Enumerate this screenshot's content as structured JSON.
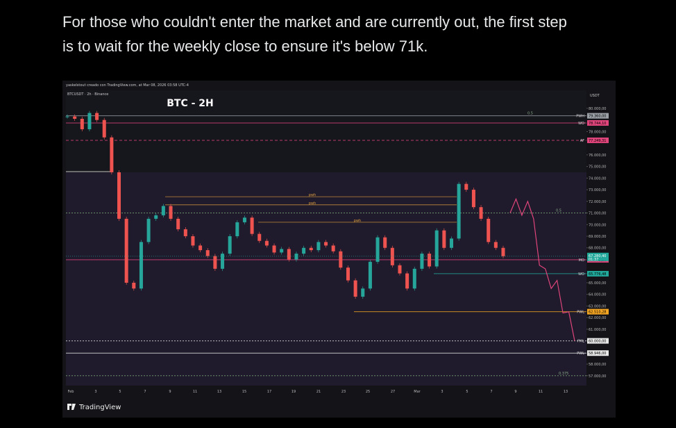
{
  "post": {
    "lines": [
      "For those who couldn't enter the market and are currently out, the first step",
      "is to wait for the weekly close to ensure it's below 71k."
    ]
  },
  "chart": {
    "type": "candlestick",
    "attribution": "yaskelstout creado con TradingView.com, at Mar 08, 2026 03:58 UTC-4",
    "symbol": "BTCUSDT · 2h · Binance",
    "title": "BTC - 2H",
    "currency": "USDT",
    "brand": "TradingView",
    "ylim": [
      56150,
      81550
    ],
    "yticks": [
      {
        "value": 80000,
        "label": "80.000,00"
      },
      {
        "value": 78000,
        "label": "78.000,00"
      },
      {
        "value": 76000,
        "label": "76.000,00"
      },
      {
        "value": 75000,
        "label": "75.000,00"
      },
      {
        "value": 74000,
        "label": "74.000,00"
      },
      {
        "value": 73000,
        "label": "73.000,00"
      },
      {
        "value": 72000,
        "label": "72.000,00"
      },
      {
        "value": 71000,
        "label": "71.000,00"
      },
      {
        "value": 70000,
        "label": "70.000,00"
      },
      {
        "value": 69000,
        "label": "69.000,00"
      },
      {
        "value": 68000,
        "label": "68.000,00"
      },
      {
        "value": 65000,
        "label": "65.000,00"
      },
      {
        "value": 64000,
        "label": "64.000,00"
      },
      {
        "value": 63000,
        "label": "63.000,00"
      },
      {
        "value": 62000,
        "label": "62.000,00"
      },
      {
        "value": 61000,
        "label": "61.000,00"
      },
      {
        "value": 58000,
        "label": "58.000,00"
      },
      {
        "value": 57000,
        "label": "57.000,00"
      }
    ],
    "xticks": [
      "Feb",
      "3",
      "5",
      "7",
      "9",
      "11",
      "13",
      "15",
      "17",
      "19",
      "21",
      "23",
      "25",
      "27",
      "Mar",
      "3",
      "5",
      "7",
      "9",
      "11",
      "13"
    ],
    "levels": [
      {
        "name": "PWH",
        "value": 79360,
        "label": "79.360,00",
        "color": "#9aa0a6"
      },
      {
        "name": "WO",
        "value": 78744.1,
        "label": "78.744,10",
        "color": "#e0457b"
      },
      {
        "name": "AF",
        "value": 77249.31,
        "label": "77.249,31",
        "color": "#e0457b"
      },
      {
        "name": "MO",
        "value": 66973.26,
        "label": "66.973,26",
        "color": "#e0457b"
      },
      {
        "name": "WO",
        "value": 65776.48,
        "label": "65.776,48",
        "color": "#22a89a"
      },
      {
        "name": "PWL",
        "value": 62510.28,
        "label": "62.510,28",
        "color": "#f5a623"
      },
      {
        "name": "PML",
        "value": 60000,
        "label": "60.000,00",
        "color": "#e8e8e8"
      },
      {
        "name": "PWL",
        "value": 58946,
        "label": "58.946,00",
        "color": "#e8e8e8"
      }
    ],
    "last_price": {
      "value": 67280.4,
      "label": "67.280,40",
      "countdown": "01:37",
      "color": "#22a89a"
    },
    "fib": [
      {
        "label": "0.5",
        "value": 79360
      },
      {
        "label": "0.5",
        "value": 71000
      },
      {
        "label": "0.375",
        "value": 57000
      }
    ],
    "notes": [
      {
        "label": "pwh",
        "value": 72400
      },
      {
        "label": "pwh",
        "value": 71700
      },
      {
        "label": "pwh",
        "value": 70200
      }
    ],
    "values": [
      79300,
      79100,
      78200,
      79600,
      79000,
      77500,
      74500,
      70500,
      65000,
      64500,
      68500,
      70500,
      70800,
      71600,
      70500,
      69600,
      69000,
      68200,
      67800,
      67300,
      66200,
      67500,
      69000,
      70200,
      70600,
      69200,
      68600,
      68200,
      67600,
      67900,
      67000,
      67500,
      68000,
      67800,
      68500,
      68200,
      67700,
      66300,
      65200,
      63800,
      64500,
      66800,
      68900,
      68000,
      66500,
      65800,
      64500,
      66200,
      67500,
      66400,
      69500,
      68000,
      68800,
      73500,
      73000,
      71500,
      70500,
      68500,
      68000,
      67280
    ],
    "projection": [
      71000,
      72200,
      70800,
      72000,
      70500,
      66500,
      66200,
      64500,
      65200,
      62400,
      62500,
      60000
    ]
  }
}
